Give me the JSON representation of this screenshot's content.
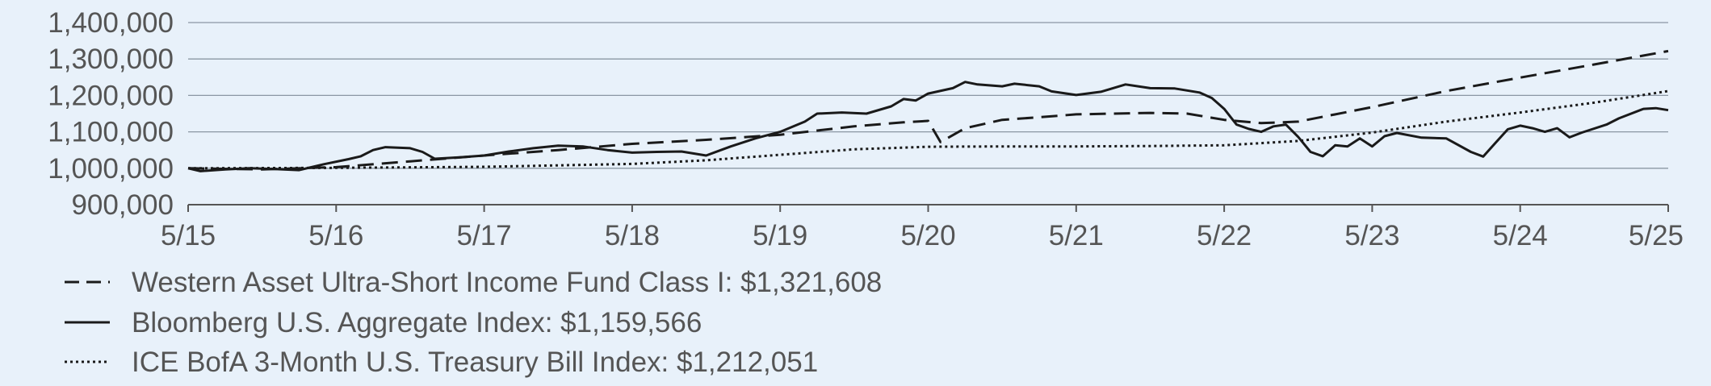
{
  "chart_data": {
    "type": "line",
    "title": "",
    "xlabel": "",
    "ylabel": "",
    "ylim": [
      900000,
      1400000
    ],
    "y_ticks": [
      900000,
      1000000,
      1100000,
      1200000,
      1300000,
      1400000
    ],
    "y_tick_labels": [
      "900,000",
      "1,000,000",
      "1,100,000",
      "1,200,000",
      "1,300,000",
      "1,400,000"
    ],
    "x_ticks": [
      0,
      12,
      24,
      36,
      48,
      60,
      72,
      84,
      96,
      108,
      120
    ],
    "x_tick_labels": [
      "5/15",
      "5/16",
      "5/17",
      "5/18",
      "5/19",
      "5/20",
      "5/21",
      "5/22",
      "5/23",
      "5/24",
      "5/25"
    ],
    "xlim": [
      0,
      120
    ],
    "grid": true,
    "legend_position": "bottom",
    "series": [
      {
        "name": "Western Asset Ultra-Short Income Fund Class I: $1,321,608",
        "style": "dashed",
        "points": [
          [
            0,
            1000000
          ],
          [
            6,
            997000
          ],
          [
            12,
            1003000
          ],
          [
            18,
            1019000
          ],
          [
            24,
            1035000
          ],
          [
            30,
            1050000
          ],
          [
            36,
            1067000
          ],
          [
            42,
            1078000
          ],
          [
            48,
            1092000
          ],
          [
            54,
            1115000
          ],
          [
            58,
            1126000
          ],
          [
            60,
            1130000
          ],
          [
            61,
            1072000
          ],
          [
            63,
            1110000
          ],
          [
            66,
            1133000
          ],
          [
            69,
            1140000
          ],
          [
            72,
            1148000
          ],
          [
            78,
            1152000
          ],
          [
            81,
            1150000
          ],
          [
            84,
            1133000
          ],
          [
            87,
            1124000
          ],
          [
            90,
            1128000
          ],
          [
            96,
            1168000
          ],
          [
            102,
            1212000
          ],
          [
            108,
            1249000
          ],
          [
            114,
            1285000
          ],
          [
            120,
            1321608
          ]
        ]
      },
      {
        "name": "Bloomberg U.S. Aggregate Index: $1,159,566",
        "style": "solid",
        "points": [
          [
            0,
            1000000
          ],
          [
            1,
            992000
          ],
          [
            3,
            997000
          ],
          [
            5,
            1000000
          ],
          [
            7,
            998000
          ],
          [
            9,
            995000
          ],
          [
            11,
            1011000
          ],
          [
            13,
            1025000
          ],
          [
            14,
            1033000
          ],
          [
            15,
            1050000
          ],
          [
            16,
            1058000
          ],
          [
            18,
            1055000
          ],
          [
            19,
            1045000
          ],
          [
            20,
            1026000
          ],
          [
            22,
            1030000
          ],
          [
            24,
            1035000
          ],
          [
            26,
            1046000
          ],
          [
            28,
            1055000
          ],
          [
            30,
            1062000
          ],
          [
            32,
            1060000
          ],
          [
            34,
            1050000
          ],
          [
            36,
            1043000
          ],
          [
            38,
            1045000
          ],
          [
            40,
            1046000
          ],
          [
            42,
            1035000
          ],
          [
            44,
            1060000
          ],
          [
            46,
            1082000
          ],
          [
            48,
            1100000
          ],
          [
            50,
            1128000
          ],
          [
            51,
            1150000
          ],
          [
            53,
            1153000
          ],
          [
            55,
            1150000
          ],
          [
            57,
            1170000
          ],
          [
            58,
            1190000
          ],
          [
            59,
            1186000
          ],
          [
            60,
            1205000
          ],
          [
            62,
            1220000
          ],
          [
            63,
            1237000
          ],
          [
            64,
            1230000
          ],
          [
            66,
            1225000
          ],
          [
            67,
            1232000
          ],
          [
            69,
            1225000
          ],
          [
            70,
            1211000
          ],
          [
            72,
            1201000
          ],
          [
            74,
            1210000
          ],
          [
            76,
            1230000
          ],
          [
            78,
            1220000
          ],
          [
            80,
            1219000
          ],
          [
            82,
            1208000
          ],
          [
            83,
            1193000
          ],
          [
            84,
            1163000
          ],
          [
            85,
            1120000
          ],
          [
            86,
            1108000
          ],
          [
            87,
            1100000
          ],
          [
            88,
            1115000
          ],
          [
            89,
            1120000
          ],
          [
            90,
            1086000
          ],
          [
            91,
            1045000
          ],
          [
            92,
            1033000
          ],
          [
            93,
            1063000
          ],
          [
            94,
            1060000
          ],
          [
            95,
            1082000
          ],
          [
            96,
            1060000
          ],
          [
            97,
            1088000
          ],
          [
            98,
            1097000
          ],
          [
            100,
            1084000
          ],
          [
            102,
            1082000
          ],
          [
            104,
            1045000
          ],
          [
            105,
            1032000
          ],
          [
            106,
            1070000
          ],
          [
            107,
            1107000
          ],
          [
            108,
            1117000
          ],
          [
            109,
            1110000
          ],
          [
            110,
            1100000
          ],
          [
            111,
            1110000
          ],
          [
            112,
            1085000
          ],
          [
            113,
            1098000
          ],
          [
            115,
            1120000
          ],
          [
            116,
            1137000
          ],
          [
            118,
            1163000
          ],
          [
            119,
            1165000
          ],
          [
            120,
            1159566
          ]
        ]
      },
      {
        "name": "ICE BofA 3-Month U.S. Treasury Bill Index: $1,212,051",
        "style": "dotted",
        "points": [
          [
            0,
            1000000
          ],
          [
            12,
            1001000
          ],
          [
            24,
            1004000
          ],
          [
            36,
            1012000
          ],
          [
            42,
            1022000
          ],
          [
            48,
            1037000
          ],
          [
            54,
            1052000
          ],
          [
            60,
            1059000
          ],
          [
            66,
            1060000
          ],
          [
            72,
            1060000
          ],
          [
            78,
            1061000
          ],
          [
            84,
            1063000
          ],
          [
            90,
            1075000
          ],
          [
            96,
            1098000
          ],
          [
            102,
            1128000
          ],
          [
            108,
            1153000
          ],
          [
            114,
            1180000
          ],
          [
            120,
            1212051
          ]
        ]
      }
    ]
  }
}
